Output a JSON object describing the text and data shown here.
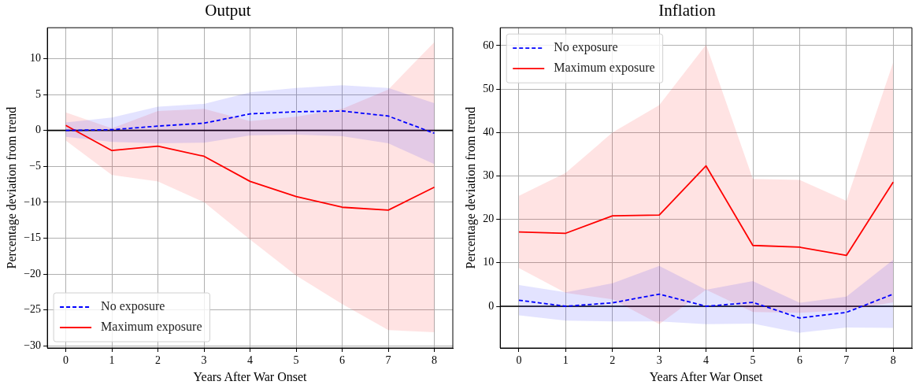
{
  "chart_data": [
    {
      "type": "line",
      "title": "Output",
      "xlabel": "Years After War Onset",
      "ylabel": "Percentage deviation from trend",
      "x": [
        0,
        1,
        2,
        3,
        4,
        5,
        6,
        7,
        8
      ],
      "xlim": [
        -0.4,
        8.4
      ],
      "xticks": [
        0,
        1,
        2,
        3,
        4,
        5,
        6,
        7,
        8
      ],
      "ylim": [
        -30.3,
        14.3
      ],
      "yticks": [
        -30,
        -25,
        -20,
        -15,
        -10,
        -5,
        0,
        5,
        10
      ],
      "grid": true,
      "legend": "bottom left",
      "marker": "none",
      "ref_lines": [
        {
          "axis": "y",
          "value": 0,
          "color": "#000000"
        }
      ],
      "series": [
        {
          "name": "No exposure",
          "color": "#0000ff",
          "line_style": "dashed",
          "values": [
            0,
            0.1,
            0.6,
            1.0,
            2.3,
            2.6,
            2.7,
            2.0,
            -0.4
          ],
          "lower": [
            -0.9,
            -1.6,
            -1.8,
            -1.7,
            -0.7,
            -0.6,
            -0.8,
            -1.8,
            -4.7
          ],
          "upper": [
            1.1,
            1.8,
            3.3,
            3.7,
            5.3,
            5.9,
            6.3,
            5.9,
            3.8
          ]
        },
        {
          "name": "Maximum exposure",
          "color": "#ff0000",
          "line_style": "solid",
          "values": [
            0.7,
            -2.8,
            -2.2,
            -3.6,
            -7.1,
            -9.2,
            -10.7,
            -11.1,
            -7.9
          ],
          "lower": [
            -1.4,
            -6.2,
            -7.1,
            -10.0,
            -15.2,
            -20.2,
            -24.2,
            -27.8,
            -28.1
          ],
          "upper": [
            2.5,
            0.3,
            2.7,
            3.0,
            1.3,
            1.9,
            3.0,
            5.7,
            12.3
          ]
        }
      ]
    },
    {
      "type": "line",
      "title": "Inflation",
      "xlabel": "Years After War Onset",
      "ylabel": "Percentage deviation from trend",
      "x": [
        0,
        1,
        2,
        3,
        4,
        5,
        6,
        7,
        8
      ],
      "xlim": [
        -0.4,
        8.4
      ],
      "xticks": [
        0,
        1,
        2,
        3,
        4,
        5,
        6,
        7,
        8
      ],
      "ylim": [
        -9.6,
        64.1
      ],
      "yticks": [
        0,
        10,
        20,
        30,
        40,
        50,
        60
      ],
      "grid": true,
      "legend": "top left",
      "marker": "none",
      "ref_lines": [
        {
          "axis": "y",
          "value": 0,
          "color": "#000000"
        }
      ],
      "series": [
        {
          "name": "No exposure",
          "color": "#0000ff",
          "line_style": "dashed",
          "values": [
            1.4,
            0,
            0.8,
            2.8,
            0,
            0.9,
            -2.7,
            -1.4,
            2.8
          ],
          "lower": [
            -2.1,
            -3.3,
            -3.5,
            -3.5,
            -4.1,
            -4.0,
            -6.1,
            -4.9,
            -5.0
          ],
          "upper": [
            4.9,
            3.2,
            5.3,
            9.3,
            3.8,
            5.8,
            0.8,
            2.2,
            10.7
          ]
        },
        {
          "name": "Maximum exposure",
          "color": "#ff0000",
          "line_style": "solid",
          "values": [
            17.1,
            16.8,
            20.8,
            21.0,
            32.3,
            14.0,
            13.6,
            11.7,
            28.6
          ],
          "lower": [
            8.8,
            3.1,
            1.6,
            -4.1,
            3.8,
            -1.3,
            -1.5,
            -0.9,
            0.9
          ],
          "upper": [
            25.4,
            30.7,
            40.0,
            46.3,
            60.2,
            29.3,
            29.1,
            24.3,
            56.1
          ]
        }
      ]
    }
  ]
}
